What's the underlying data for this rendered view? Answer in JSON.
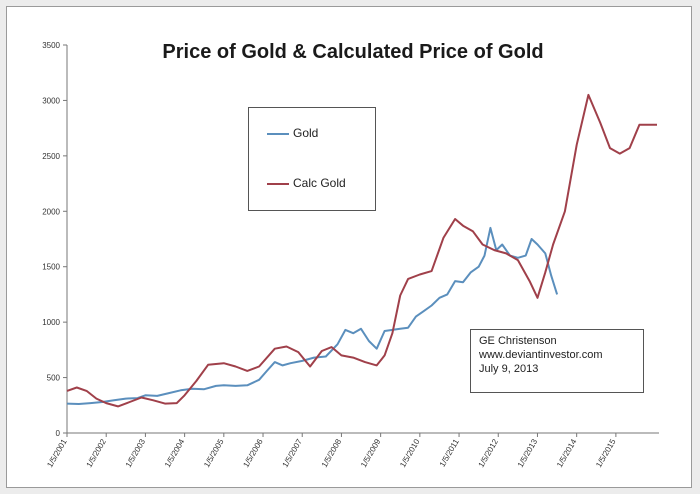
{
  "chart_data": {
    "type": "line",
    "title": "Price of Gold & Calculated Price of Gold",
    "xlabel": "",
    "ylabel": "",
    "ylim": [
      0,
      3500
    ],
    "yticks": [
      0,
      500,
      1000,
      1500,
      2000,
      2500,
      3000,
      3500
    ],
    "xtick_labels": [
      "1/5/2001",
      "1/5/2002",
      "1/5/2003",
      "1/5/2004",
      "1/5/2005",
      "1/5/2006",
      "1/5/2007",
      "1/5/2008",
      "1/5/2009",
      "1/5/2010",
      "1/5/2011",
      "1/5/2012",
      "1/5/2013",
      "1/5/2014",
      "1/5/2015"
    ],
    "xlim": [
      2001.0,
      2016.1
    ],
    "grid": false,
    "legend_placement": "upper-left",
    "series": [
      {
        "name": "Gold",
        "color": "#5b8fbd",
        "x": [
          2001.0,
          2001.3,
          2001.6,
          2001.9,
          2002.2,
          2002.5,
          2002.8,
          2003.0,
          2003.3,
          2003.6,
          2003.9,
          2004.2,
          2004.5,
          2004.8,
          2005.0,
          2005.3,
          2005.6,
          2005.9,
          2006.1,
          2006.3,
          2006.5,
          2006.7,
          2007.0,
          2007.3,
          2007.6,
          2007.9,
          2008.1,
          2008.3,
          2008.5,
          2008.7,
          2008.9,
          2009.1,
          2009.3,
          2009.5,
          2009.7,
          2009.9,
          2010.1,
          2010.3,
          2010.5,
          2010.7,
          2010.9,
          2011.1,
          2011.3,
          2011.5,
          2011.65,
          2011.8,
          2011.95,
          2012.1,
          2012.3,
          2012.5,
          2012.7,
          2012.85,
          2013.0,
          2013.2,
          2013.35,
          2013.5
        ],
        "values": [
          265,
          262,
          270,
          280,
          295,
          310,
          315,
          340,
          335,
          360,
          385,
          400,
          395,
          425,
          430,
          425,
          430,
          480,
          560,
          640,
          610,
          630,
          650,
          680,
          690,
          800,
          930,
          900,
          940,
          830,
          760,
          920,
          930,
          940,
          950,
          1050,
          1100,
          1150,
          1220,
          1250,
          1370,
          1360,
          1450,
          1500,
          1600,
          1850,
          1650,
          1700,
          1600,
          1580,
          1600,
          1750,
          1700,
          1620,
          1420,
          1250
        ]
      },
      {
        "name": "Calc Gold",
        "color": "#a0404a",
        "x": [
          2001.0,
          2001.25,
          2001.5,
          2001.75,
          2002.0,
          2002.3,
          2002.6,
          2002.9,
          2003.2,
          2003.5,
          2003.8,
          2004.0,
          2004.3,
          2004.6,
          2005.0,
          2005.3,
          2005.6,
          2005.9,
          2006.3,
          2006.6,
          2006.9,
          2007.2,
          2007.5,
          2007.75,
          2008.0,
          2008.3,
          2008.6,
          2008.9,
          2009.1,
          2009.3,
          2009.5,
          2009.7,
          2010.0,
          2010.3,
          2010.6,
          2010.9,
          2011.1,
          2011.35,
          2011.6,
          2011.9,
          2012.2,
          2012.5,
          2012.8,
          2013.0,
          2013.2,
          2013.4,
          2013.7,
          2014.0,
          2014.3,
          2014.6,
          2014.85,
          2015.1,
          2015.35,
          2015.6,
          2015.85,
          2016.05
        ],
        "values": [
          380,
          410,
          380,
          310,
          270,
          240,
          280,
          320,
          295,
          265,
          270,
          340,
          470,
          615,
          630,
          600,
          560,
          600,
          760,
          780,
          730,
          600,
          740,
          775,
          700,
          680,
          640,
          610,
          700,
          900,
          1240,
          1390,
          1430,
          1460,
          1760,
          1930,
          1870,
          1820,
          1700,
          1650,
          1620,
          1560,
          1370,
          1220,
          1450,
          1700,
          2000,
          2600,
          3050,
          2800,
          2570,
          2520,
          2570,
          2780,
          2780,
          2780
        ]
      }
    ]
  },
  "annotation": {
    "line1": "GE Christenson",
    "line2": "www.deviantinvestor.com",
    "line3": "July 9, 2013"
  }
}
